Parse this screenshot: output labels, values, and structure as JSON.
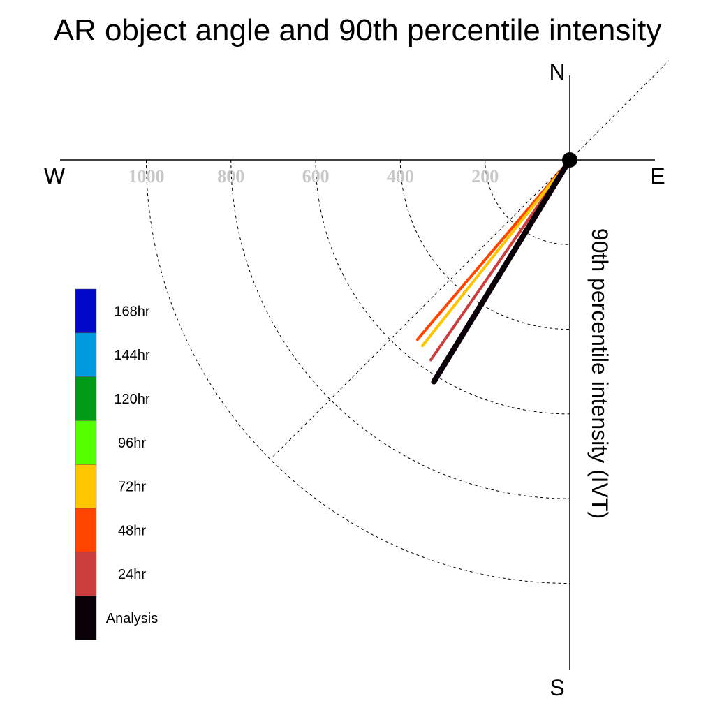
{
  "chart_data": {
    "type": "polar-vector",
    "title": "AR object angle and 90th percentile intensity",
    "radial_axis_label": "90th percentile intensity (IVT)",
    "compass": {
      "north": "N",
      "south": "S",
      "east": "E",
      "west": "W"
    },
    "radial_ticks": [
      200,
      400,
      600,
      800,
      1000
    ],
    "radial_tick_labels": [
      "200",
      "400",
      "600",
      "800",
      "1000"
    ],
    "radial_max": 1200,
    "reference_line_deg": 225,
    "series": [
      {
        "name": "24hr",
        "angle_deg": 214.8,
        "intensity": 575,
        "color": "#cc3d3d"
      },
      {
        "name": "48hr",
        "angle_deg": 220.3,
        "intensity": 556,
        "color": "#ff4500"
      },
      {
        "name": "72hr",
        "angle_deg": 218.4,
        "intensity": 560,
        "color": "#ffc500"
      },
      {
        "name": "Analysis",
        "angle_deg": 211.5,
        "intensity": 614,
        "color": "#0a0008"
      }
    ],
    "legend": [
      {
        "label": "168hr",
        "color": "#0009c7"
      },
      {
        "label": "144hr",
        "color": "#009bde"
      },
      {
        "label": "120hr",
        "color": "#009a17"
      },
      {
        "label": "96hr",
        "color": "#55ff00"
      },
      {
        "label": "72hr",
        "color": "#ffc500"
      },
      {
        "label": "48hr",
        "color": "#ff4500"
      },
      {
        "label": "24hr",
        "color": "#cc3d3d"
      },
      {
        "label": "Analysis",
        "color": "#0a0008"
      }
    ]
  }
}
